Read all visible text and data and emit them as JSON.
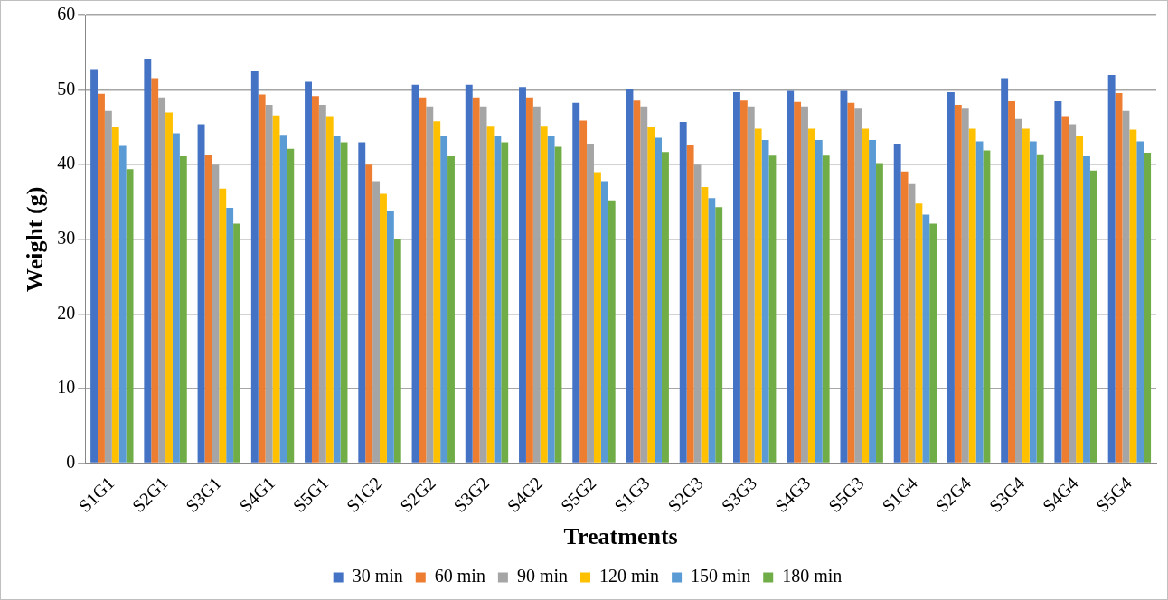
{
  "chart_data": {
    "type": "bar",
    "xlabel": "Treatments",
    "ylabel": "Weight (g)",
    "categories": [
      "S1G1",
      "S2G1",
      "S3G1",
      "S4G1",
      "S5G1",
      "S1G2",
      "S2G2",
      "S3G2",
      "S4G2",
      "S5G2",
      "S1G3",
      "S2G3",
      "S3G3",
      "S4G3",
      "S5G3",
      "S1G4",
      "S2G4",
      "S3G4",
      "S4G4",
      "S5G4"
    ],
    "series": [
      {
        "name": "30 min",
        "color": "#4472c4",
        "values": [
          52.8,
          54.2,
          45.4,
          52.5,
          51.1,
          43.0,
          50.7,
          50.7,
          50.4,
          48.3,
          50.2,
          45.7,
          49.7,
          49.9,
          49.9,
          42.8,
          49.7,
          51.6,
          48.5,
          52.0
        ]
      },
      {
        "name": "60 min",
        "color": "#ed7d31",
        "values": [
          49.5,
          51.6,
          41.3,
          49.4,
          49.2,
          40.0,
          49.0,
          49.0,
          49.0,
          45.9,
          48.6,
          42.6,
          48.6,
          48.4,
          48.3,
          39.1,
          48.0,
          48.5,
          46.5,
          49.6
        ]
      },
      {
        "name": "90 min",
        "color": "#a5a5a5",
        "values": [
          47.2,
          49.0,
          40.0,
          48.0,
          48.0,
          37.8,
          47.8,
          47.8,
          47.8,
          42.8,
          47.8,
          40.0,
          47.8,
          47.8,
          47.5,
          37.4,
          47.5,
          46.1,
          45.4,
          47.2
        ]
      },
      {
        "name": "120 min",
        "color": "#ffc000",
        "values": [
          45.1,
          47.0,
          36.8,
          46.6,
          46.5,
          36.1,
          45.8,
          45.2,
          45.2,
          39.0,
          45.0,
          37.0,
          44.8,
          44.8,
          44.8,
          34.8,
          44.8,
          44.8,
          43.8,
          44.7
        ]
      },
      {
        "name": "150 min",
        "color": "#5b9bd5",
        "values": [
          42.5,
          44.2,
          34.2,
          44.0,
          43.8,
          33.8,
          43.8,
          43.8,
          43.8,
          37.8,
          43.6,
          35.5,
          43.3,
          43.3,
          43.3,
          33.3,
          43.1,
          43.1,
          41.1,
          43.1
        ]
      },
      {
        "name": "180 min",
        "color": "#70ad47",
        "values": [
          39.4,
          41.1,
          32.1,
          42.1,
          43.0,
          30.0,
          41.1,
          43.0,
          42.4,
          35.2,
          41.7,
          34.3,
          41.2,
          41.2,
          40.2,
          32.1,
          41.9,
          41.4,
          39.2,
          41.6
        ]
      }
    ],
    "ylim": [
      0,
      60
    ],
    "yticks": [
      0,
      10,
      20,
      30,
      40,
      50,
      60
    ],
    "grid": "y",
    "legend": "bottom"
  }
}
